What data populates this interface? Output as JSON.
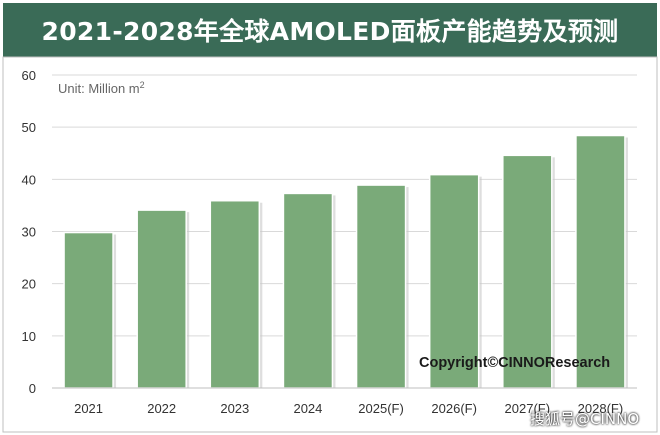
{
  "chart_data": {
    "type": "bar",
    "title": "2021-2028年全球AMOLED面板产能趋势及预测",
    "unit_label": "Unit: Million m",
    "unit_superscript": "2",
    "categories": [
      "2021",
      "2022",
      "2023",
      "2024",
      "2025(F)",
      "2026(F)",
      "2027(F)",
      "2028(F)"
    ],
    "values": [
      29.8,
      34.1,
      35.9,
      37.3,
      38.9,
      40.9,
      44.6,
      48.4
    ],
    "ylim": [
      0,
      60
    ],
    "yticks": [
      "0",
      "10",
      "20",
      "30",
      "40",
      "50",
      "60"
    ],
    "grid": true,
    "legend": "none",
    "bar_color": "#7aaa79",
    "bar_edge_color": "#ffffff",
    "title_bar_color": "#3a6b57",
    "copyright": "Copyright©CINNOResearch"
  },
  "watermark": "搜狐号@CINNO"
}
